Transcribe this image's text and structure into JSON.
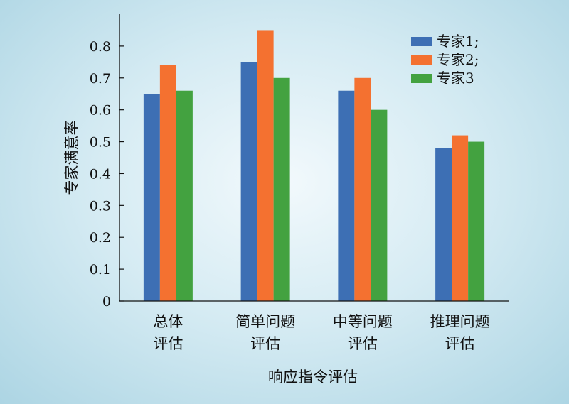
{
  "chart_data": {
    "type": "bar",
    "categories": [
      [
        "总体",
        "评估"
      ],
      [
        "简单问题",
        "评估"
      ],
      [
        "中等问题",
        "评估"
      ],
      [
        "推理问题",
        "评估"
      ]
    ],
    "series": [
      {
        "name": "专家1;",
        "color": "#3d6fb4",
        "values": [
          0.65,
          0.75,
          0.66,
          0.48
        ]
      },
      {
        "name": "专家2;",
        "color": "#f47130",
        "values": [
          0.74,
          0.85,
          0.7,
          0.52
        ]
      },
      {
        "name": "专家3",
        "color": "#43a240",
        "values": [
          0.66,
          0.7,
          0.6,
          0.5
        ]
      }
    ],
    "xlabel": "响应指令评估",
    "ylabel": "专家满意率",
    "ylim": [
      0,
      0.9
    ],
    "yticks": [
      "0",
      "0.1",
      "0.2",
      "0.3",
      "0.4",
      "0.5",
      "0.6",
      "0.7",
      "0.8"
    ],
    "grid": false,
    "legend_position": "top-right"
  }
}
